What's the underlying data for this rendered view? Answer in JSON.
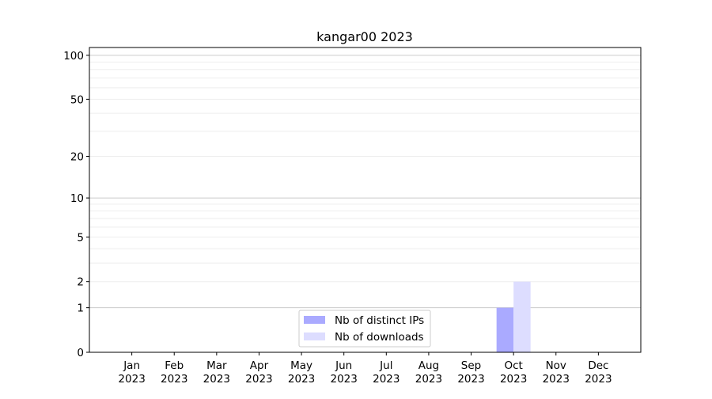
{
  "chart_data": {
    "type": "bar",
    "title": "kangar00 2023",
    "xlabel": "",
    "ylabel": "",
    "yscale": "symlog",
    "ylim": [
      0,
      113
    ],
    "yticks": [
      0,
      1,
      2,
      5,
      10,
      20,
      50,
      100
    ],
    "ytick_labels": [
      "0",
      "1",
      "2",
      "5",
      "10",
      "20",
      "50",
      "100"
    ],
    "categories": [
      "Jan\n2023",
      "Feb\n2023",
      "Mar\n2023",
      "Apr\n2023",
      "May\n2023",
      "Jun\n2023",
      "Jul\n2023",
      "Aug\n2023",
      "Sep\n2023",
      "Oct\n2023",
      "Nov\n2023",
      "Dec\n2023"
    ],
    "month_labels": [
      "Jan",
      "Feb",
      "Mar",
      "Apr",
      "May",
      "Jun",
      "Jul",
      "Aug",
      "Sep",
      "Oct",
      "Nov",
      "Dec"
    ],
    "year_label": "2023",
    "series": [
      {
        "name": "Nb of distinct IPs",
        "color": "#aaaaff",
        "values": [
          0,
          0,
          0,
          0,
          0,
          0,
          0,
          0,
          0,
          1,
          0,
          0
        ]
      },
      {
        "name": "Nb of downloads",
        "color": "#ddddff",
        "values": [
          0,
          0,
          0,
          0,
          0,
          0,
          0,
          0,
          0,
          2,
          0,
          0
        ]
      }
    ],
    "grid": "y major and minor",
    "legend": "lower-center"
  }
}
